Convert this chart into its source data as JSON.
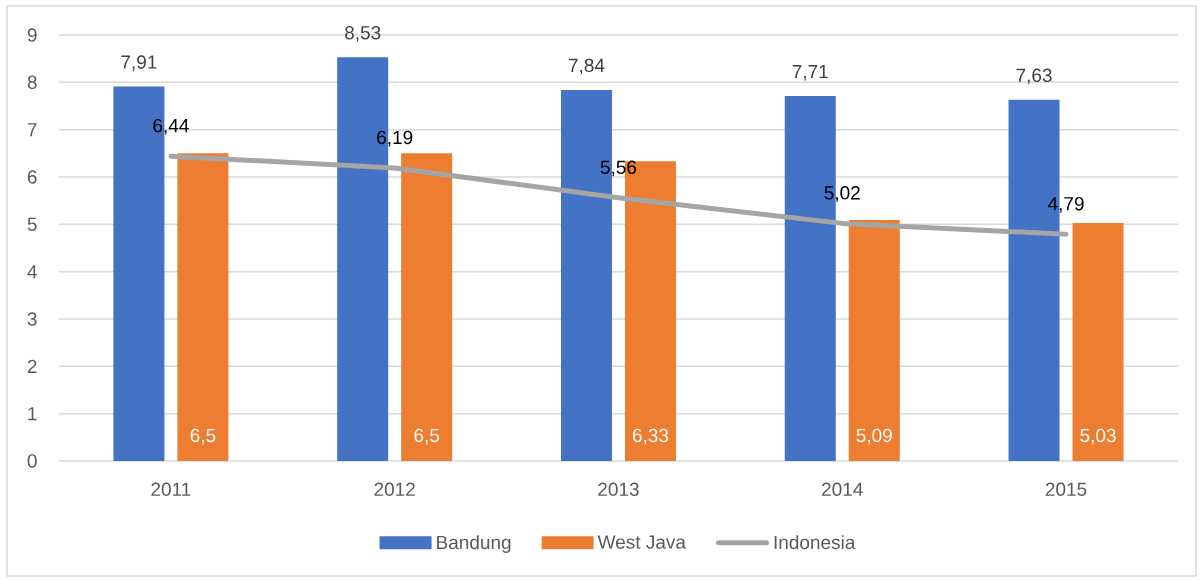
{
  "chart_data": {
    "type": "bar",
    "categories": [
      "2011",
      "2012",
      "2013",
      "2014",
      "2015"
    ],
    "series": [
      {
        "name": "Bandung",
        "color": "#4472c4",
        "values": [
          7.91,
          8.53,
          7.84,
          7.71,
          7.63
        ],
        "value_labels": [
          "7,91",
          "8,53",
          "7,84",
          "7,71",
          "7,63"
        ]
      },
      {
        "name": "West Java",
        "color": "#ed7d31",
        "values": [
          6.5,
          6.5,
          6.33,
          5.09,
          5.03
        ],
        "value_labels": [
          "6,5",
          "6,5",
          "6,33",
          "5,09",
          "5,03"
        ]
      },
      {
        "name": "Indonesia",
        "type": "line",
        "color": "#a5a5a5",
        "values": [
          6.44,
          6.19,
          5.56,
          5.02,
          4.79
        ],
        "value_labels": [
          "6,44",
          "6,19",
          "5,56",
          "5,02",
          "4,79"
        ]
      }
    ],
    "ylim": [
      0,
      9
    ],
    "yticks": [
      0,
      1,
      2,
      3,
      4,
      5,
      6,
      7,
      8,
      9
    ],
    "grid": "y",
    "legend": "bottom"
  }
}
